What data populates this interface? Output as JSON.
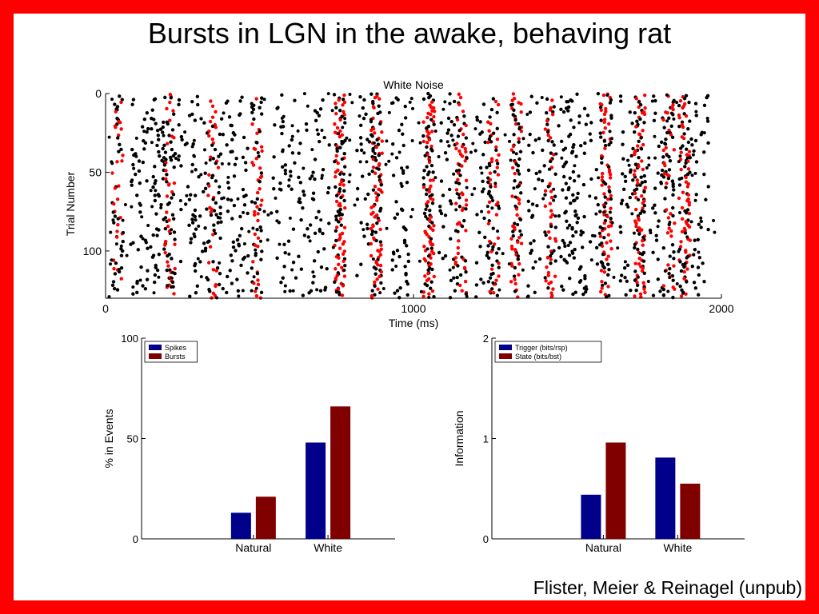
{
  "slide": {
    "title": "Bursts in LGN in the awake, behaving rat",
    "citation": "Flister, Meier & Reinagel (unpub)",
    "background_color": "#ff0000"
  },
  "chart_data": [
    {
      "type": "scatter",
      "title": "White Noise",
      "xlabel": "Time (ms)",
      "ylabel": "Trial Number",
      "xlim": [
        0,
        2000
      ],
      "ylim": [
        0,
        130
      ],
      "y_inverted": true,
      "xticks": [
        0,
        1000,
        2000
      ],
      "yticks": [
        0,
        50,
        100
      ],
      "grid": false,
      "series": [
        {
          "color": "#000000",
          "marker": "dot"
        },
        {
          "color": "#ff0000",
          "marker": "dot"
        }
      ],
      "columns": [
        {
          "t": 40,
          "burst": true,
          "density": 0.45
        },
        {
          "t": 110,
          "burst": false,
          "density": 0.25
        },
        {
          "t": 145,
          "burst": false,
          "density": 0.2
        },
        {
          "t": 185,
          "burst": false,
          "density": 0.35
        },
        {
          "t": 210,
          "burst": true,
          "density": 0.5
        },
        {
          "t": 265,
          "burst": false,
          "density": 0.2
        },
        {
          "t": 310,
          "burst": false,
          "density": 0.25
        },
        {
          "t": 350,
          "burst": true,
          "density": 0.45
        },
        {
          "t": 395,
          "burst": false,
          "density": 0.2
        },
        {
          "t": 435,
          "burst": false,
          "density": 0.3
        },
        {
          "t": 490,
          "burst": true,
          "density": 0.55
        },
        {
          "t": 560,
          "burst": false,
          "density": 0.15
        },
        {
          "t": 600,
          "burst": false,
          "density": 0.15
        },
        {
          "t": 655,
          "burst": false,
          "density": 0.2
        },
        {
          "t": 700,
          "burst": false,
          "density": 0.2
        },
        {
          "t": 760,
          "burst": true,
          "density": 0.9
        },
        {
          "t": 845,
          "burst": false,
          "density": 0.2
        },
        {
          "t": 880,
          "burst": true,
          "density": 0.85
        },
        {
          "t": 960,
          "burst": false,
          "density": 0.35
        },
        {
          "t": 1050,
          "burst": true,
          "density": 0.9
        },
        {
          "t": 1110,
          "burst": false,
          "density": 0.25
        },
        {
          "t": 1155,
          "burst": true,
          "density": 0.55
        },
        {
          "t": 1230,
          "burst": false,
          "density": 0.3
        },
        {
          "t": 1260,
          "burst": true,
          "density": 0.5
        },
        {
          "t": 1335,
          "burst": true,
          "density": 0.6
        },
        {
          "t": 1400,
          "burst": false,
          "density": 0.2
        },
        {
          "t": 1445,
          "burst": true,
          "density": 0.5
        },
        {
          "t": 1500,
          "burst": false,
          "density": 0.4
        },
        {
          "t": 1530,
          "burst": false,
          "density": 0.35
        },
        {
          "t": 1585,
          "burst": false,
          "density": 0.2
        },
        {
          "t": 1625,
          "burst": true,
          "density": 0.75
        },
        {
          "t": 1700,
          "burst": false,
          "density": 0.3
        },
        {
          "t": 1735,
          "burst": true,
          "density": 0.85
        },
        {
          "t": 1795,
          "burst": false,
          "density": 0.25
        },
        {
          "t": 1830,
          "burst": true,
          "density": 0.5
        },
        {
          "t": 1880,
          "burst": true,
          "density": 0.7
        },
        {
          "t": 1930,
          "burst": false,
          "density": 0.25
        }
      ]
    },
    {
      "type": "bar",
      "title": "",
      "xlabel": "",
      "ylabel": "% in Events",
      "categories": [
        "Natural",
        "White"
      ],
      "ylim": [
        0,
        100
      ],
      "yticks": [
        0,
        50,
        100
      ],
      "legend_position": "top-left",
      "series": [
        {
          "name": "Spikes",
          "color": "#00008b",
          "values": [
            13,
            48
          ]
        },
        {
          "name": "Bursts",
          "color": "#800000",
          "values": [
            21,
            66
          ]
        }
      ]
    },
    {
      "type": "bar",
      "title": "",
      "xlabel": "",
      "ylabel": "Information",
      "categories": [
        "Natural",
        "White"
      ],
      "ylim": [
        0,
        2
      ],
      "yticks": [
        0,
        1,
        2
      ],
      "legend_position": "top-left",
      "series": [
        {
          "name": "Trigger (bits/rsp)",
          "color": "#00008b",
          "values": [
            0.44,
            0.81
          ]
        },
        {
          "name": "State (bits/bst)",
          "color": "#800000",
          "values": [
            0.96,
            0.55
          ]
        }
      ]
    }
  ]
}
